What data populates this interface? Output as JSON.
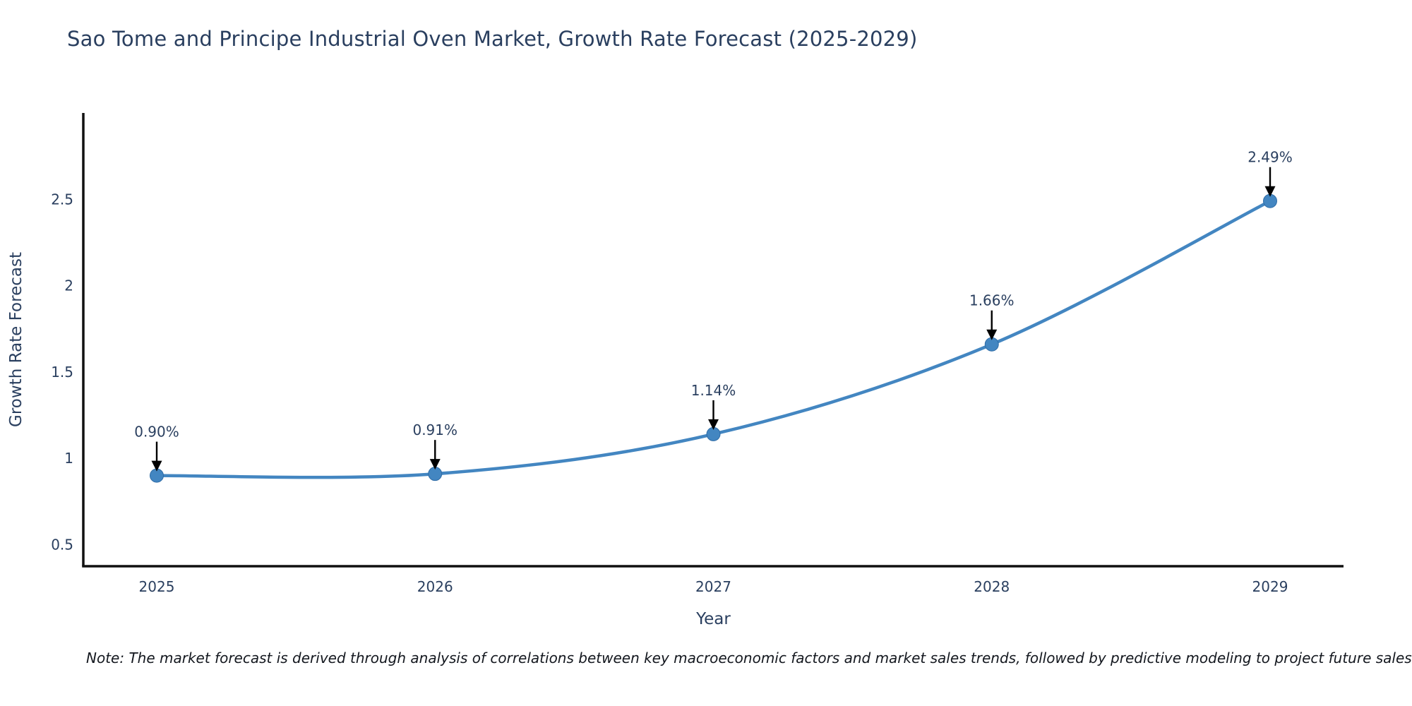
{
  "chart_data": {
    "type": "line",
    "title": "Sao Tome and Principe Industrial Oven Market, Growth Rate Forecast (2025-2029)",
    "xlabel": "Year",
    "ylabel": "Growth Rate Forecast",
    "x": [
      2025,
      2026,
      2027,
      2028,
      2029
    ],
    "series": [
      {
        "name": "Growth Rate Forecast",
        "values": [
          0.9,
          0.91,
          1.14,
          1.66,
          2.49
        ],
        "point_labels": [
          "0.90%",
          "0.91%",
          "1.14%",
          "1.66%",
          "2.49%"
        ]
      }
    ],
    "yticks": [
      0.5,
      1,
      1.5,
      2,
      2.5
    ],
    "ylim": [
      0.375,
      3.0
    ],
    "grid": false,
    "legend": "none",
    "line_shape": "spline",
    "colors": {
      "line": "#4386c1",
      "marker": "#4386c1",
      "marker_edge": "#2f6ca6",
      "axis": "#111111",
      "text": "#2a3f5f",
      "annotation_arrow": "#000000"
    },
    "note": "Note: The market forecast is derived through analysis of correlations between key macroeconomic factors and market sales trends, followed by predictive modeling to project future sales revenue. The forecast presented is based on the most recent data available."
  }
}
